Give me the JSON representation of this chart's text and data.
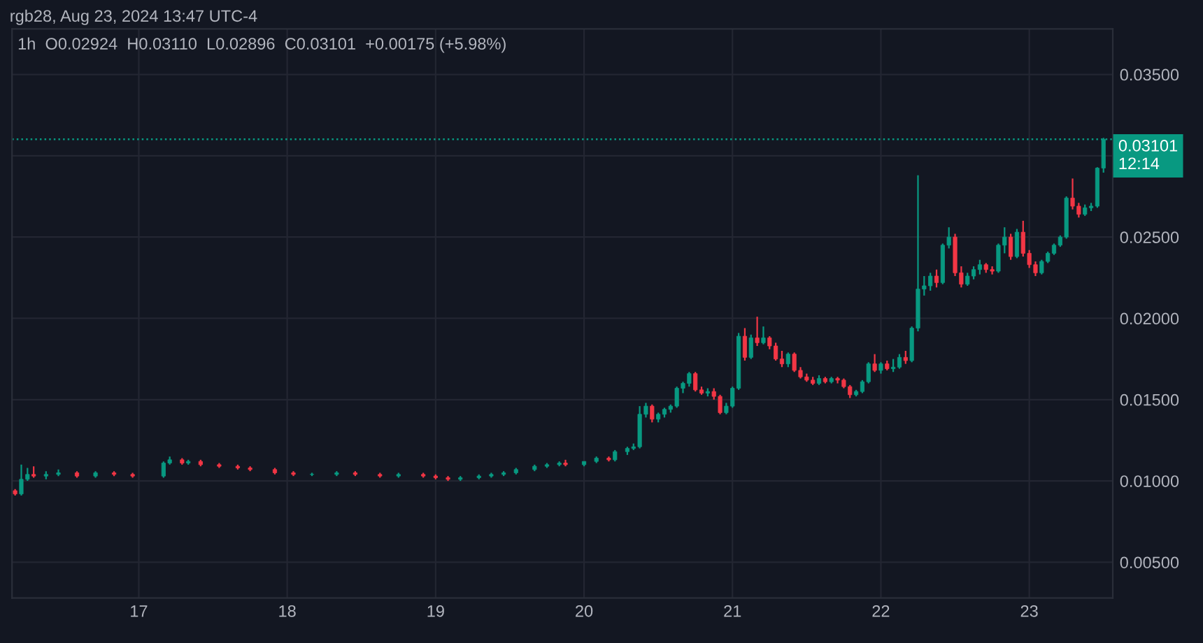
{
  "chart_data": {
    "type": "candlestick",
    "title": "rgb28, Aug 23, 2024 13:47 UTC-4",
    "subtitle": "1h  O0.02924  H0.03110  L0.02896  C0.03101  +0.00175 (+5.98%)",
    "colors": [
      "#f23645",
      "#089981",
      "#089981",
      "#f23645",
      "#089981",
      "#089981",
      "#f23645",
      "#089981",
      "#f23645",
      "#f23645",
      "#089981",
      "#089981",
      "#f23645",
      "#089981",
      "#f23645",
      "#f23645",
      "#f23645",
      "#f23645",
      "#f23645",
      "#f23645",
      "#089981",
      "#089981",
      "#f23645",
      "#f23645",
      "#089981",
      "#f23645",
      "#f23645",
      "#f23645",
      "#089981",
      "#089981",
      "#089981",
      "#089981",
      "#089981",
      "#089981",
      "#089981",
      "#089981",
      "#f23645",
      "#089981",
      "#089981",
      "#f23645",
      "#089981",
      "#089981",
      "#089981",
      "#089981",
      "#089981",
      "#f23645",
      "#089981",
      "#089981",
      "#089981",
      "#089981",
      "#089981",
      "#089981",
      "#f23645",
      "#f23645",
      "#089981",
      "#f23645",
      "#f23645",
      "#089981",
      "#089981",
      "#089981",
      "#f23645",
      "#089981",
      "#f23645",
      "#089981",
      "#f23645",
      "#f23645",
      "#f23645",
      "#089981",
      "#f23645",
      "#f23645",
      "#f23645",
      "#f23645",
      "#089981",
      "#f23645",
      "#089981",
      "#f23645",
      "#f23645",
      "#f23645",
      "#089981",
      "#089981",
      "#089981",
      "#f23645",
      "#089981",
      "#f23645",
      "#089981",
      "#089981",
      "#f23645",
      "#089981",
      "#089981",
      "#089981",
      "#089981",
      "#f23645",
      "#089981",
      "#089981",
      "#f23645",
      "#f23645",
      "#089981",
      "#089981",
      "#089981",
      "#f23645",
      "#f23645",
      "#089981",
      "#089981",
      "#f23645",
      "#089981",
      "#f23645",
      "#f23645",
      "#f23645",
      "#089981",
      "#089981",
      "#089981",
      "#089981",
      "#089981",
      "#f23645",
      "#f23645",
      "#089981",
      "#089981",
      "#089981",
      "#089981"
    ],
    "x": [
      "2024-08-16T04:00",
      "2024-08-16T05:00",
      "2024-08-16T06:00",
      "2024-08-16T07:00",
      "2024-08-16T09:00",
      "2024-08-16T11:00",
      "2024-08-16T14:00",
      "2024-08-16T17:00",
      "2024-08-16T20:00",
      "2024-08-16T23:00",
      "2024-08-17T04:00",
      "2024-08-17T05:00",
      "2024-08-17T07:00",
      "2024-08-17T08:00",
      "2024-08-17T10:00",
      "2024-08-17T13:00",
      "2024-08-17T16:00",
      "2024-08-17T18:00",
      "2024-08-17T22:00",
      "2024-08-18T01:00",
      "2024-08-18T04:00",
      "2024-08-18T08:00",
      "2024-08-18T11:00",
      "2024-08-18T15:00",
      "2024-08-18T18:00",
      "2024-08-18T22:00",
      "2024-08-19T00:00",
      "2024-08-19T02:00",
      "2024-08-19T04:00",
      "2024-08-19T07:00",
      "2024-08-19T09:00",
      "2024-08-19T11:00",
      "2024-08-19T13:00",
      "2024-08-19T16:00",
      "2024-08-19T18:00",
      "2024-08-19T20:00",
      "2024-08-19T21:00",
      "2024-08-20T00:00",
      "2024-08-20T02:00",
      "2024-08-20T04:00",
      "2024-08-20T05:00",
      "2024-08-20T07:00",
      "2024-08-20T08:00",
      "2024-08-20T09:00",
      "2024-08-20T10:00",
      "2024-08-20T11:00",
      "2024-08-20T12:00",
      "2024-08-20T13:00",
      "2024-08-20T14:00",
      "2024-08-20T15:00",
      "2024-08-20T16:00",
      "2024-08-20T17:00",
      "2024-08-20T18:00",
      "2024-08-20T19:00",
      "2024-08-20T20:00",
      "2024-08-20T21:00",
      "2024-08-20T22:00",
      "2024-08-20T23:00",
      "2024-08-21T00:00",
      "2024-08-21T01:00",
      "2024-08-21T02:00",
      "2024-08-21T03:00",
      "2024-08-21T04:00",
      "2024-08-21T05:00",
      "2024-08-21T06:00",
      "2024-08-21T07:00",
      "2024-08-21T08:00",
      "2024-08-21T09:00",
      "2024-08-21T10:00",
      "2024-08-21T11:00",
      "2024-08-21T12:00",
      "2024-08-21T13:00",
      "2024-08-21T14:00",
      "2024-08-21T15:00",
      "2024-08-21T16:00",
      "2024-08-21T17:00",
      "2024-08-21T18:00",
      "2024-08-21T19:00",
      "2024-08-21T20:00",
      "2024-08-21T21:00",
      "2024-08-21T22:00",
      "2024-08-21T23:00",
      "2024-08-22T00:00",
      "2024-08-22T01:00",
      "2024-08-22T02:00",
      "2024-08-22T03:00",
      "2024-08-22T04:00",
      "2024-08-22T05:00",
      "2024-08-22T06:00",
      "2024-08-22T07:00",
      "2024-08-22T08:00",
      "2024-08-22T09:00",
      "2024-08-22T10:00",
      "2024-08-22T11:00",
      "2024-08-22T12:00",
      "2024-08-22T13:00",
      "2024-08-22T14:00",
      "2024-08-22T15:00",
      "2024-08-22T16:00",
      "2024-08-22T17:00",
      "2024-08-22T18:00",
      "2024-08-22T19:00",
      "2024-08-22T20:00",
      "2024-08-22T21:00",
      "2024-08-22T22:00",
      "2024-08-22T23:00",
      "2024-08-23T00:00",
      "2024-08-23T01:00",
      "2024-08-23T02:00",
      "2024-08-23T03:00",
      "2024-08-23T04:00",
      "2024-08-23T05:00",
      "2024-08-23T06:00",
      "2024-08-23T07:00",
      "2024-08-23T08:00",
      "2024-08-23T09:00",
      "2024-08-23T10:00",
      "2024-08-23T11:00",
      "2024-08-23T12:00"
    ],
    "ohlc": [
      [
        0.0094,
        0.0095,
        0.0091,
        0.0092
      ],
      [
        0.0092,
        0.011,
        0.0091,
        0.0101
      ],
      [
        0.0101,
        0.0108,
        0.01,
        0.0104
      ],
      [
        0.0104,
        0.0109,
        0.0102,
        0.0103
      ],
      [
        0.0103,
        0.0106,
        0.0101,
        0.0104
      ],
      [
        0.0104,
        0.0107,
        0.0103,
        0.0105
      ],
      [
        0.0105,
        0.0106,
        0.0102,
        0.0103
      ],
      [
        0.0103,
        0.0106,
        0.0102,
        0.0105
      ],
      [
        0.0105,
        0.0106,
        0.0103,
        0.0104
      ],
      [
        0.0104,
        0.0105,
        0.0102,
        0.0103
      ],
      [
        0.0103,
        0.0112,
        0.0102,
        0.0111
      ],
      [
        0.0111,
        0.0115,
        0.011,
        0.0113
      ],
      [
        0.0113,
        0.0114,
        0.011,
        0.0111
      ],
      [
        0.0111,
        0.0113,
        0.011,
        0.0112
      ],
      [
        0.0112,
        0.0113,
        0.0109,
        0.011
      ],
      [
        0.011,
        0.0111,
        0.0108,
        0.0109
      ],
      [
        0.0109,
        0.011,
        0.0107,
        0.0108
      ],
      [
        0.0108,
        0.0109,
        0.0106,
        0.0107
      ],
      [
        0.0107,
        0.0108,
        0.0104,
        0.0105
      ],
      [
        0.0105,
        0.0106,
        0.0103,
        0.0104
      ],
      [
        0.0104,
        0.0105,
        0.0103,
        0.0104
      ],
      [
        0.0104,
        0.0106,
        0.0103,
        0.0105
      ],
      [
        0.0105,
        0.0106,
        0.0103,
        0.0104
      ],
      [
        0.0104,
        0.0105,
        0.0102,
        0.0103
      ],
      [
        0.0103,
        0.0105,
        0.0102,
        0.0104
      ],
      [
        0.0104,
        0.0105,
        0.0102,
        0.0103
      ],
      [
        0.0103,
        0.0104,
        0.0101,
        0.0102
      ],
      [
        0.0102,
        0.0103,
        0.01,
        0.0101
      ],
      [
        0.0101,
        0.0103,
        0.01,
        0.0102
      ],
      [
        0.0102,
        0.0104,
        0.0101,
        0.0103
      ],
      [
        0.0103,
        0.0105,
        0.0102,
        0.0104
      ],
      [
        0.0104,
        0.0106,
        0.0103,
        0.0105
      ],
      [
        0.0105,
        0.0108,
        0.0104,
        0.0107
      ],
      [
        0.0107,
        0.011,
        0.0106,
        0.0109
      ],
      [
        0.0109,
        0.0111,
        0.0108,
        0.011
      ],
      [
        0.011,
        0.0112,
        0.0109,
        0.0111
      ],
      [
        0.0111,
        0.0113,
        0.0109,
        0.011
      ],
      [
        0.011,
        0.0112,
        0.0109,
        0.0112
      ],
      [
        0.0112,
        0.0115,
        0.0111,
        0.0114
      ],
      [
        0.0114,
        0.0115,
        0.0112,
        0.0113
      ],
      [
        0.0113,
        0.0119,
        0.0112,
        0.0118
      ],
      [
        0.0118,
        0.0121,
        0.0116,
        0.012
      ],
      [
        0.012,
        0.0123,
        0.0119,
        0.0121
      ],
      [
        0.0121,
        0.0146,
        0.012,
        0.0141
      ],
      [
        0.0141,
        0.0148,
        0.0139,
        0.0146
      ],
      [
        0.0146,
        0.0147,
        0.0136,
        0.0138
      ],
      [
        0.0138,
        0.0142,
        0.0136,
        0.0141
      ],
      [
        0.0141,
        0.0145,
        0.0139,
        0.0144
      ],
      [
        0.0144,
        0.0147,
        0.0142,
        0.0146
      ],
      [
        0.0146,
        0.0158,
        0.0145,
        0.0157
      ],
      [
        0.0157,
        0.0161,
        0.0154,
        0.016
      ],
      [
        0.016,
        0.0167,
        0.0158,
        0.0166
      ],
      [
        0.0166,
        0.0167,
        0.0155,
        0.0156
      ],
      [
        0.0156,
        0.0158,
        0.0153,
        0.0154
      ],
      [
        0.0154,
        0.0157,
        0.0152,
        0.0155
      ],
      [
        0.0155,
        0.0157,
        0.015,
        0.0152
      ],
      [
        0.0152,
        0.0153,
        0.0141,
        0.0142
      ],
      [
        0.0142,
        0.0148,
        0.0141,
        0.0146
      ],
      [
        0.0146,
        0.0158,
        0.0145,
        0.0157
      ],
      [
        0.0157,
        0.0191,
        0.0156,
        0.0189
      ],
      [
        0.0189,
        0.0194,
        0.0174,
        0.0176
      ],
      [
        0.0176,
        0.019,
        0.0175,
        0.0188
      ],
      [
        0.0188,
        0.0201,
        0.0183,
        0.0185
      ],
      [
        0.0185,
        0.0195,
        0.0184,
        0.0188
      ],
      [
        0.0188,
        0.0189,
        0.0181,
        0.0183
      ],
      [
        0.0183,
        0.0185,
        0.0174,
        0.0175
      ],
      [
        0.0175,
        0.018,
        0.017,
        0.0172
      ],
      [
        0.0172,
        0.0179,
        0.017,
        0.0178
      ],
      [
        0.0178,
        0.0179,
        0.0167,
        0.0168
      ],
      [
        0.0168,
        0.017,
        0.0163,
        0.0164
      ],
      [
        0.0164,
        0.0166,
        0.0161,
        0.0162
      ],
      [
        0.0162,
        0.0164,
        0.0159,
        0.016
      ],
      [
        0.016,
        0.0165,
        0.0159,
        0.0163
      ],
      [
        0.0163,
        0.0164,
        0.016,
        0.0161
      ],
      [
        0.0161,
        0.0164,
        0.016,
        0.0163
      ],
      [
        0.0163,
        0.0164,
        0.016,
        0.0162
      ],
      [
        0.0162,
        0.0163,
        0.0157,
        0.0158
      ],
      [
        0.0158,
        0.0159,
        0.0151,
        0.0153
      ],
      [
        0.0153,
        0.0156,
        0.0152,
        0.0155
      ],
      [
        0.0155,
        0.0162,
        0.0154,
        0.0161
      ],
      [
        0.0161,
        0.0173,
        0.016,
        0.0172
      ],
      [
        0.0172,
        0.0178,
        0.0167,
        0.0168
      ],
      [
        0.0168,
        0.0173,
        0.0166,
        0.0172
      ],
      [
        0.0172,
        0.0174,
        0.0168,
        0.0169
      ],
      [
        0.0169,
        0.0175,
        0.0167,
        0.017
      ],
      [
        0.017,
        0.0178,
        0.0169,
        0.0176
      ],
      [
        0.0176,
        0.018,
        0.0172,
        0.0174
      ],
      [
        0.0174,
        0.0195,
        0.0173,
        0.0194
      ],
      [
        0.0194,
        0.0288,
        0.0192,
        0.0218
      ],
      [
        0.0218,
        0.0226,
        0.0214,
        0.022
      ],
      [
        0.022,
        0.0228,
        0.0217,
        0.0226
      ],
      [
        0.0226,
        0.023,
        0.0219,
        0.0222
      ],
      [
        0.0222,
        0.0246,
        0.0221,
        0.0245
      ],
      [
        0.0245,
        0.0256,
        0.0243,
        0.025
      ],
      [
        0.025,
        0.0252,
        0.0226,
        0.0228
      ],
      [
        0.0228,
        0.0232,
        0.0219,
        0.0221
      ],
      [
        0.0221,
        0.0228,
        0.022,
        0.0226
      ],
      [
        0.0226,
        0.0232,
        0.0224,
        0.023
      ],
      [
        0.023,
        0.0236,
        0.0227,
        0.0233
      ],
      [
        0.0233,
        0.0234,
        0.0228,
        0.023
      ],
      [
        0.023,
        0.0232,
        0.0227,
        0.0229
      ],
      [
        0.0229,
        0.0246,
        0.0228,
        0.0245
      ],
      [
        0.0245,
        0.0256,
        0.024,
        0.025
      ],
      [
        0.025,
        0.0252,
        0.0236,
        0.0238
      ],
      [
        0.0238,
        0.0255,
        0.0237,
        0.0253
      ],
      [
        0.0253,
        0.026,
        0.0238,
        0.024
      ],
      [
        0.024,
        0.0242,
        0.0231,
        0.0233
      ],
      [
        0.0233,
        0.0235,
        0.0226,
        0.0228
      ],
      [
        0.0228,
        0.0236,
        0.0227,
        0.0235
      ],
      [
        0.0235,
        0.0241,
        0.0234,
        0.024
      ],
      [
        0.024,
        0.0246,
        0.0239,
        0.0245
      ],
      [
        0.0245,
        0.0251,
        0.0244,
        0.025
      ],
      [
        0.025,
        0.0275,
        0.0249,
        0.0274
      ],
      [
        0.0274,
        0.0286,
        0.0267,
        0.0269
      ],
      [
        0.0269,
        0.0271,
        0.0262,
        0.0264
      ],
      [
        0.0264,
        0.027,
        0.0263,
        0.0268
      ],
      [
        0.0268,
        0.0271,
        0.0266,
        0.0269
      ],
      [
        0.0269,
        0.0293,
        0.0268,
        0.02924
      ],
      [
        0.02924,
        0.0311,
        0.02896,
        0.03101
      ]
    ],
    "xlim": [
      "2024-08-16T03:30",
      "2024-08-23T13:30"
    ],
    "xticks": [
      {
        "value": "2024-08-17",
        "label": "17"
      },
      {
        "value": "2024-08-18",
        "label": "18"
      },
      {
        "value": "2024-08-19",
        "label": "19"
      },
      {
        "value": "2024-08-20",
        "label": "20"
      },
      {
        "value": "2024-08-21",
        "label": "21"
      },
      {
        "value": "2024-08-22",
        "label": "22"
      },
      {
        "value": "2024-08-23",
        "label": "23"
      }
    ],
    "ylim": [
      0.0028,
      0.0378
    ],
    "yticks": [
      {
        "value": 0.005,
        "label": "0.00500"
      },
      {
        "value": 0.01,
        "label": "0.01000"
      },
      {
        "value": 0.015,
        "label": "0.01500"
      },
      {
        "value": 0.02,
        "label": "0.02000"
      },
      {
        "value": 0.025,
        "label": "0.02500"
      },
      {
        "value": 0.03,
        "label": null
      },
      {
        "value": 0.035,
        "label": "0.03500"
      }
    ],
    "ref_lines": [
      {
        "axis": "y",
        "value": 0.03101,
        "label": "0.03101\n12:14",
        "color": "#089981",
        "line_style": "dotted"
      }
    ],
    "grid": true
  }
}
